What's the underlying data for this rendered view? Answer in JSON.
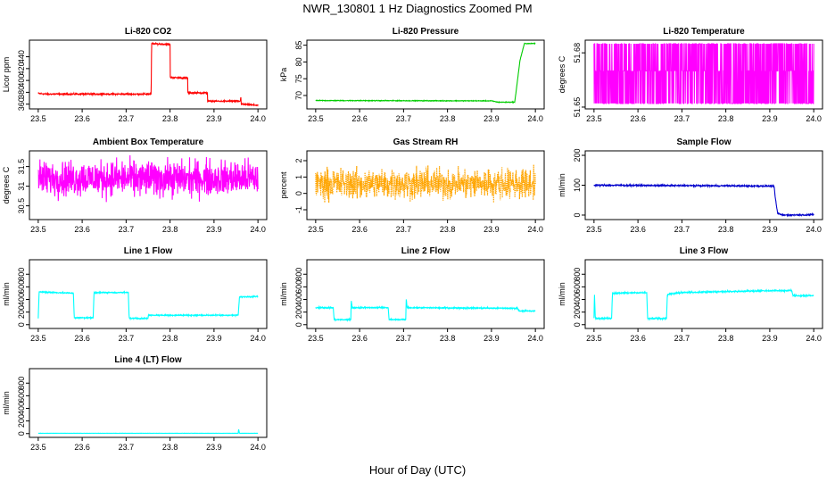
{
  "figure": {
    "title": "NWR_130801  1 Hz Diagnostics Zoomed PM",
    "xlabel": "Hour of Day (UTC)"
  },
  "chart_data": [
    {
      "type": "line",
      "title": "Li-820 CO2",
      "ylabel": "Licor ppm",
      "color": "#ff0000",
      "xlim": [
        23.48,
        24.02
      ],
      "ylim": [
        352,
        468
      ],
      "xticks": [
        "23.5",
        "23.6",
        "23.7",
        "23.8",
        "23.9",
        "24.0"
      ],
      "yticks": [
        "360",
        "380",
        "400",
        "420",
        "440"
      ],
      "series": [
        {
          "points": [
            [
              23.5,
              378
            ],
            [
              23.52,
              377
            ],
            [
              23.6,
              377
            ],
            [
              23.7,
              377
            ],
            [
              23.757,
              377
            ],
            [
              23.758,
              462
            ],
            [
              23.8,
              461
            ],
            [
              23.8,
              405
            ],
            [
              23.84,
              404
            ],
            [
              23.84,
              379
            ],
            [
              23.885,
              379
            ],
            [
              23.885,
              365
            ],
            [
              23.96,
              365
            ],
            [
              23.961,
              374
            ],
            [
              23.962,
              360
            ],
            [
              24.0,
              358
            ]
          ],
          "noise": 0.6
        }
      ]
    },
    {
      "type": "line",
      "title": "Li-820 Pressure",
      "ylabel": "kPa",
      "color": "#00cc00",
      "xlim": [
        23.48,
        24.02
      ],
      "ylim": [
        66,
        86.5
      ],
      "xticks": [
        "23.5",
        "23.6",
        "23.7",
        "23.8",
        "23.9",
        "24.0"
      ],
      "yticks": [
        "70",
        "75",
        "80",
        "85"
      ],
      "series": [
        {
          "points": [
            [
              23.5,
              68.5
            ],
            [
              23.9,
              68.4
            ],
            [
              23.915,
              68.0
            ],
            [
              23.953,
              68.0
            ],
            [
              23.965,
              80.5
            ],
            [
              23.975,
              85.5
            ],
            [
              24.0,
              85.5
            ]
          ],
          "noise": 0.05
        }
      ]
    },
    {
      "type": "line",
      "title": "Li-820 Temperature",
      "ylabel": "degrees C",
      "color": "#ff00ff",
      "xlim": [
        23.48,
        24.02
      ],
      "ylim": [
        51.649,
        51.687
      ],
      "xticks": [
        "23.5",
        "23.6",
        "23.7",
        "23.8",
        "23.9",
        "24.0"
      ],
      "yticks": [
        "51.65",
        "51.68"
      ],
      "series": [
        {
          "quantized": [
            51.652,
            51.67,
            51.685
          ],
          "points": [
            [
              23.5,
              51.67
            ],
            [
              24.0,
              51.67
            ]
          ]
        }
      ]
    },
    {
      "type": "line",
      "title": "Ambient Box Temperature",
      "ylabel": "degrees C",
      "color": "#ff00ff",
      "xlim": [
        23.48,
        24.02
      ],
      "ylim": [
        30.15,
        31.9
      ],
      "xticks": [
        "23.5",
        "23.6",
        "23.7",
        "23.8",
        "23.9",
        "24.0"
      ],
      "yticks": [
        "30.5",
        "31",
        "31.5"
      ],
      "series": [
        {
          "points": [
            [
              23.5,
              31.2
            ],
            [
              24.0,
              31.2
            ]
          ],
          "noise": 0.22
        }
      ]
    },
    {
      "type": "line",
      "title": "Gas Stream RH",
      "ylabel": "percent",
      "color": "#ffa500",
      "xlim": [
        23.48,
        24.02
      ],
      "ylim": [
        -1.6,
        2.6
      ],
      "xticks": [
        "23.5",
        "23.6",
        "23.7",
        "23.8",
        "23.9",
        "24.0"
      ],
      "yticks": [
        "-1",
        "0",
        "1",
        "2"
      ],
      "series": [
        {
          "points": [
            [
              23.5,
              0.6
            ],
            [
              24.0,
              0.6
            ]
          ],
          "noise": 0.45,
          "dotted": true
        }
      ]
    },
    {
      "type": "line",
      "title": "Sample Flow",
      "ylabel": "ml/min",
      "color": "#0000cc",
      "xlim": [
        23.48,
        24.02
      ],
      "ylim": [
        -15,
        215
      ],
      "xticks": [
        "23.5",
        "23.6",
        "23.7",
        "23.8",
        "23.9",
        "24.0"
      ],
      "yticks": [
        "0",
        "100",
        "200"
      ],
      "series": [
        {
          "points": [
            [
              23.5,
              100
            ],
            [
              23.8,
              98
            ],
            [
              23.91,
              97
            ],
            [
              23.912,
              62
            ],
            [
              23.918,
              5
            ],
            [
              23.93,
              0
            ],
            [
              24.0,
              1
            ]
          ],
          "noise": 1.2
        }
      ]
    },
    {
      "type": "line",
      "title": "Line 1 Flow",
      "ylabel": "ml/min",
      "color": "#00ffff",
      "xlim": [
        23.48,
        24.02
      ],
      "ylim": [
        -60,
        1030
      ],
      "xticks": [
        "23.5",
        "23.6",
        "23.7",
        "23.8",
        "23.9",
        "24.0"
      ],
      "yticks": [
        "0",
        "200",
        "400",
        "600",
        "800"
      ],
      "series": [
        {
          "points": [
            [
              23.5,
              100
            ],
            [
              23.502,
              520
            ],
            [
              23.58,
              500
            ],
            [
              23.582,
              110
            ],
            [
              23.625,
              110
            ],
            [
              23.627,
              510
            ],
            [
              23.705,
              510
            ],
            [
              23.707,
              100
            ],
            [
              23.75,
              100
            ],
            [
              23.75,
              150
            ],
            [
              23.955,
              150
            ],
            [
              23.958,
              440
            ],
            [
              24.0,
              450
            ]
          ],
          "noise": 5
        }
      ]
    },
    {
      "type": "line",
      "title": "Line 2 Flow",
      "ylabel": "ml/min",
      "color": "#00ffff",
      "xlim": [
        23.48,
        24.02
      ],
      "ylim": [
        -60,
        1030
      ],
      "xticks": [
        "23.5",
        "23.6",
        "23.7",
        "23.8",
        "23.9",
        "24.0"
      ],
      "yticks": [
        "0",
        "200",
        "400",
        "600",
        "800"
      ],
      "series": [
        {
          "points": [
            [
              23.5,
              270
            ],
            [
              23.54,
              270
            ],
            [
              23.542,
              80
            ],
            [
              23.58,
              80
            ],
            [
              23.581,
              390
            ],
            [
              23.583,
              270
            ],
            [
              23.665,
              270
            ],
            [
              23.667,
              80
            ],
            [
              23.705,
              80
            ],
            [
              23.706,
              420
            ],
            [
              23.708,
              270
            ],
            [
              23.96,
              260
            ],
            [
              23.962,
              220
            ],
            [
              24.0,
              215
            ]
          ],
          "noise": 5
        }
      ]
    },
    {
      "type": "line",
      "title": "Line 3 Flow",
      "ylabel": "ml/min",
      "color": "#00ffff",
      "xlim": [
        23.48,
        24.02
      ],
      "ylim": [
        -60,
        1030
      ],
      "xticks": [
        "23.5",
        "23.6",
        "23.7",
        "23.8",
        "23.9",
        "24.0"
      ],
      "yticks": [
        "0",
        "200",
        "400",
        "600",
        "800"
      ],
      "series": [
        {
          "points": [
            [
              23.5,
              100
            ],
            [
              23.501,
              500
            ],
            [
              23.503,
              100
            ],
            [
              23.54,
              100
            ],
            [
              23.542,
              500
            ],
            [
              23.62,
              510
            ],
            [
              23.622,
              100
            ],
            [
              23.665,
              100
            ],
            [
              23.667,
              480
            ],
            [
              23.7,
              510
            ],
            [
              23.9,
              540
            ],
            [
              23.95,
              540
            ],
            [
              23.953,
              460
            ],
            [
              24.0,
              460
            ]
          ],
          "noise": 6
        }
      ]
    },
    {
      "type": "line",
      "title": "Line 4 (LT) Flow",
      "ylabel": "ml/min",
      "color": "#00ffff",
      "xlim": [
        23.48,
        24.02
      ],
      "ylim": [
        -60,
        1030
      ],
      "xticks": [
        "23.5",
        "23.6",
        "23.7",
        "23.8",
        "23.9",
        "24.0"
      ],
      "yticks": [
        "0",
        "200",
        "400",
        "600",
        "800"
      ],
      "series": [
        {
          "points": [
            [
              23.5,
              5
            ],
            [
              23.955,
              5
            ],
            [
              23.956,
              70
            ],
            [
              23.958,
              5
            ],
            [
              24.0,
              5
            ]
          ],
          "noise": 0.8
        }
      ]
    }
  ]
}
